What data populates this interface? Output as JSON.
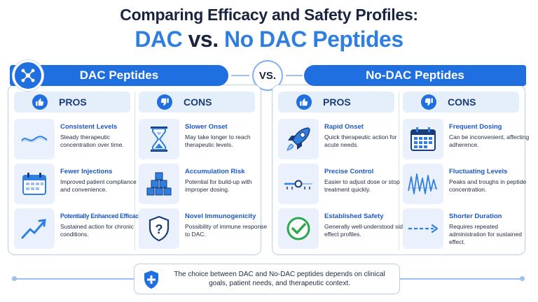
{
  "header": {
    "title_line1": "Comparing Efficacy and Safety Profiles:",
    "title_dac": "DAC",
    "title_vs": "vs.",
    "title_nodac": "No DAC Peptides"
  },
  "vs_label": "VS.",
  "left": {
    "banner": "DAC Peptides",
    "pros_label": "PROS",
    "cons_label": "CONS",
    "pros": [
      {
        "title": "Consistent Levels",
        "desc": "Steady therapeutic concentration over time.",
        "icon": "wave-line-icon"
      },
      {
        "title": "Fewer Injections",
        "desc": "Improved patient compliance and convenience.",
        "icon": "calendar-icon"
      },
      {
        "title": "Potentially Enhanced Efficacy",
        "desc": "Sustained action for chronic conditions.",
        "icon": "trend-up-icon"
      }
    ],
    "cons": [
      {
        "title": "Slower Onset",
        "desc": "May take longer to reach therapeutic levels.",
        "icon": "hourglass-icon"
      },
      {
        "title": "Accumulation Risk",
        "desc": "Potential for build-up with improper dosing.",
        "icon": "stacked-cubes-icon"
      },
      {
        "title": "Novel Immunogenicity",
        "desc": "Possibility of immune response to DAC.",
        "icon": "shield-question-icon"
      }
    ]
  },
  "right": {
    "banner": "No-DAC Peptides",
    "pros_label": "PROS",
    "cons_label": "CONS",
    "pros": [
      {
        "title": "Rapid Onset",
        "desc": "Quick therapeutic action for acute needs.",
        "icon": "rocket-icon"
      },
      {
        "title": "Precise Control",
        "desc": "Easier to adjust dose or stop treatment quickly.",
        "icon": "slider-icon"
      },
      {
        "title": "Established Safety",
        "desc": "Generally well-understood side effect profiles.",
        "icon": "check-circle-icon"
      }
    ],
    "cons": [
      {
        "title": "Frequent Dosing",
        "desc": "Can be inconvenient, affecting adherence.",
        "icon": "calendar-icon"
      },
      {
        "title": "Fluctuating Levels",
        "desc": "Peaks and troughs in peptide concentration.",
        "icon": "zigzag-line-icon"
      },
      {
        "title": "Shorter Duration",
        "desc": "Requires repeated administration for sustained effect.",
        "icon": "dashed-arrow-icon"
      }
    ]
  },
  "footer": {
    "text": "The choice between DAC and No-DAC peptides depends on clinical goals, patient needs, and therapeutic context."
  },
  "colors": {
    "accent": "#1f6fe0",
    "title_dark": "#1b2540",
    "item_title": "#1c58c8",
    "panel_border": "#b6cdef",
    "icon_bg": "#eaf1fc",
    "check_green": "#2aa84a"
  }
}
